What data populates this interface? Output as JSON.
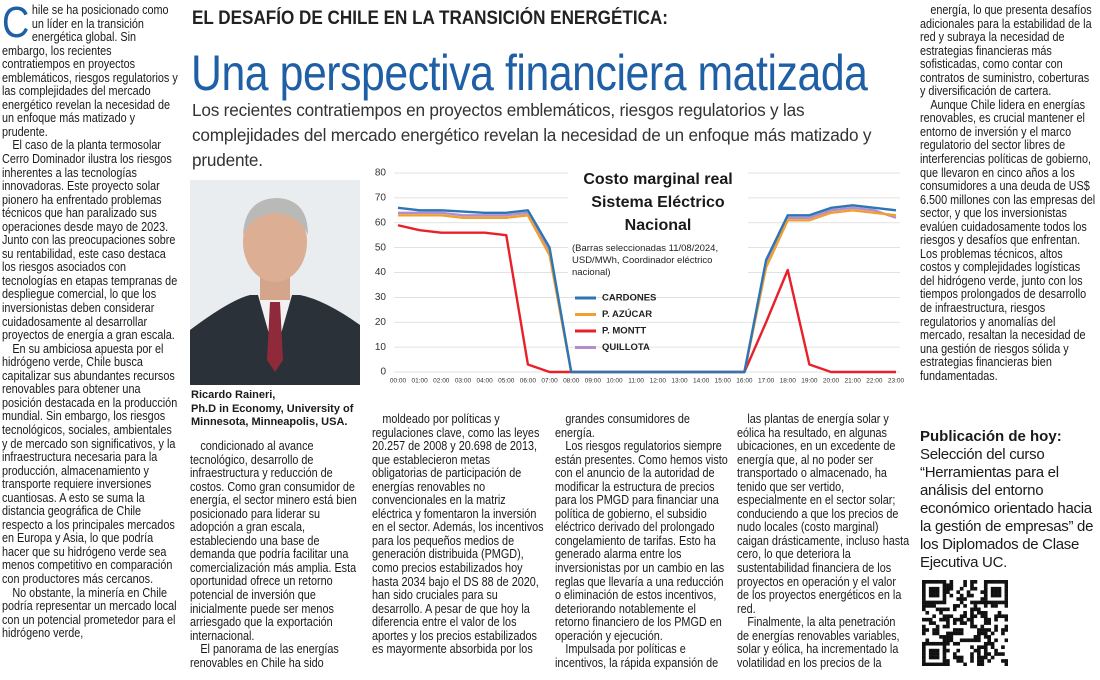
{
  "header": {
    "kicker": "EL DESAFÍO DE CHILE EN LA TRANSICIÓN ENERGÉTICA:",
    "title": "Una perspectiva financiera matizada",
    "dek": "Los recientes contratiempos en proyectos emblemáticos, riesgos regulatorios y las complejidades del mercado energético revelan la necesidad de un enfoque más matizado y prudente."
  },
  "photo": {
    "caption_name": "Ricardo Raineri,",
    "caption_credentials": "Ph.D in Economy, University of Minnesota, Minneapolis, USA."
  },
  "columns": [
    [
      "Chile se ha posicionado como un líder en la transición energética global. Sin embargo, los recientes contratiempos en proyectos emblemáticos, riesgos regulatorios y las complejidades del mercado energético revelan la necesidad de un enfoque más matizado y prudente.",
      "El caso de la planta termosolar Cerro Dominador ilustra los riesgos inherentes a las tecnologías innovadoras. Este proyecto solar pionero ha enfrentado problemas técnicos que han paralizado sus operaciones desde mayo de 2023. Junto con las preocupaciones sobre su rentabilidad, este caso destaca los riesgos asociados con tecnologías en etapas tempranas de despliegue comercial, lo que los inversionistas deben considerar cuidadosamente al desarrollar proyectos de energía a gran escala.",
      "En su ambiciosa apuesta por el hidrógeno verde, Chile busca capitalizar sus abundantes recursos renovables para obtener una posición destacada en la producción mundial. Sin embargo, los riesgos tecnológicos, sociales, ambientales y de mercado son significativos, y la infraestructura necesaria para la producción, almacenamiento y transporte requiere inversiones cuantiosas. A esto se suma la distancia geográfica de Chile respecto a los principales mercados en Europa y Asia, lo que podría hacer que su hidrógeno verde sea menos competitivo en comparación con productores más cercanos.",
      "No obstante, la minería en Chile podría representar un mercado local con un potencial prometedor para el hidrógeno verde,"
    ],
    [
      "condicionado al avance tecnológico, desarrollo de infraestructura y reducción de costos. Como gran consumidor de energía, el sector minero está bien posicionado para liderar su adopción a gran escala, estableciendo una base de demanda que podría facilitar una comercialización más amplia. Esta oportunidad ofrece un retorno potencial de inversión que inicialmente puede ser menos arriesgado que la exportación internacional.",
      "El panorama de las energías renovables en Chile ha sido"
    ],
    [
      "moldeado por políticas y regulaciones clave, como las leyes 20.257 de 2008 y 20.698 de 2013, que establecieron metas obligatorias de participación de energías renovables no convencionales en la matriz eléctrica y fomentaron la inversión en el sector. Además, los incentivos para los pequeños medios de generación distribuida (PMGD), como precios estabilizados hoy hasta 2034 bajo el DS 88 de 2020, han sido cruciales para su desarrollo. A pesar de que hoy la diferencia entre el valor de los aportes y los precios estabilizados es mayormente absorbida por los"
    ],
    [
      "grandes consumidores de energía.",
      "Los riesgos regulatorios siempre están presentes. Como hemos visto con el anuncio de la autoridad de modificar la estructura de precios para los PMGD para financiar una política de gobierno, el subsidio eléctrico derivado del prolongado congelamiento de tarifas. Esto ha generado alarma entre los inversionistas por un cambio en las reglas que llevaría a una reducción o eliminación de estos incentivos, deteriorando notablemente el retorno financiero de los PMGD en operación y ejecución.",
      "Impulsada por políticas e incentivos, la rápida expansión de"
    ],
    [
      "las plantas de energía solar y eólica ha resultado, en algunas ubicaciones, en un excedente de energía que, al no poder ser transportado o almacenado, ha tenido que ser vertido, especialmente en el sector solar; conduciendo a que los precios de nudo locales (costo marginal) caigan drásticamente, incluso hasta cero, lo que deteriora la sustentabilidad financiera de los proyectos en operación y el valor de los proyectos energéticos en la red.",
      "Finalmente, la alta penetración de energías renovables variables, solar y eólica, ha incrementado la volatilidad en los precios de la"
    ],
    [
      "energía, lo que presenta desafíos adicionales para la estabilidad de la red y subraya la necesidad de estrategias financieras más sofisticadas, como contar con contratos de suministro, coberturas y diversificación de cartera.",
      "Aunque Chile lidera en energías renovables, es crucial mantener el entorno de inversión y el marco regulatorio del sector libres de interferencias políticas de gobierno, que llevaron en cinco años a los consumidores a una deuda de US$ 6.500 millones con las empresas del sector, y que los inversionistas evalúen cuidadosamente todos los riesgos y desafíos que enfrentan. Los problemas técnicos, altos costos y complejidades logísticas del hidrógeno verde, junto con los tiempos prolongados de desarrollo de infraestructura, riesgos regulatorios y anomalías del mercado, resaltan la necesidad de una gestión de riesgos sólida y estrategias financieras bien fundamentadas."
    ]
  ],
  "sidebar": {
    "heading": "Publicación de hoy:",
    "text": "Selección del curso “Herramientas para el análisis del entorno económico orientado hacia la gestión de empresas” de los Diplomados de Clase Ejecutiva UC."
  },
  "chart_data": {
    "type": "line",
    "title": "Costo marginal real Sistema Eléctrico Nacional",
    "subtitle": "(Barras seleccionadas 11/08/2024, USD/MWh, Coordinador eléctrico nacional)",
    "categories": [
      "00:00",
      "01:00",
      "02:00",
      "03:00",
      "04:00",
      "05:00",
      "06:00",
      "07:00",
      "08:00",
      "09:00",
      "10:00",
      "11:00",
      "12:00",
      "13:00",
      "14:00",
      "15:00",
      "16:00",
      "17:00",
      "18:00",
      "19:00",
      "20:00",
      "21:00",
      "22:00",
      "23:00"
    ],
    "series": [
      {
        "name": "CARDONES",
        "color": "#2e75b6",
        "values": [
          66,
          65,
          65,
          64.5,
          64,
          64,
          65,
          50,
          0,
          0,
          0,
          0,
          0,
          0,
          0,
          0,
          0,
          45,
          63,
          63,
          66,
          67,
          66,
          65
        ]
      },
      {
        "name": "P. AZÚCAR",
        "color": "#f0a030",
        "values": [
          63,
          63,
          63,
          62,
          62,
          62,
          63,
          47,
          0,
          0,
          0,
          0,
          0,
          0,
          0,
          0,
          0,
          42,
          61,
          61,
          64,
          65,
          64,
          63
        ]
      },
      {
        "name": "P. MONTT",
        "color": "#e8202a",
        "values": [
          59,
          57,
          56,
          56,
          56,
          55,
          3,
          0,
          0,
          0,
          0,
          0,
          0,
          0,
          0,
          0,
          0,
          20,
          41,
          3,
          0,
          0,
          0,
          0
        ]
      },
      {
        "name": "QUILLOTA",
        "color": "#b18fcf",
        "values": [
          64,
          64,
          64,
          63,
          63,
          63,
          64,
          48,
          0,
          0,
          0,
          0,
          0,
          0,
          0,
          0,
          0,
          43,
          62,
          62,
          65,
          66,
          65,
          62
        ]
      }
    ],
    "ylim": [
      0,
      80
    ],
    "yticks": [
      0,
      10,
      20,
      30,
      40,
      50,
      60,
      70,
      80
    ],
    "grid": true
  }
}
